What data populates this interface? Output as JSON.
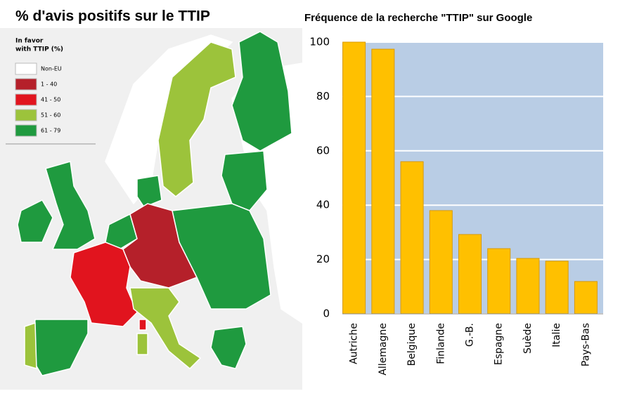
{
  "map": {
    "title": "% d'avis positifs sur le TTIP",
    "legend_title": [
      "In favor",
      "with TTIP (%)"
    ],
    "legend": [
      {
        "label": "Non-EU",
        "color": "#ffffff"
      },
      {
        "label": "1 - 40",
        "color": "#b5202a"
      },
      {
        "label": "41 - 50",
        "color": "#e1141e"
      },
      {
        "label": "51 - 60",
        "color": "#9cc33b"
      },
      {
        "label": "61 - 79",
        "color": "#1f9a3f"
      }
    ]
  },
  "chart_data": {
    "type": "bar",
    "title": "Fréquence de la recherche \"TTIP\" sur Google",
    "categories": [
      "Autriche",
      "Allemagne",
      "Belgique",
      "Finlande",
      "G.-B.",
      "Espagne",
      "Suède",
      "Italie",
      "Pays-Bas"
    ],
    "values": [
      100,
      97.4,
      56,
      38,
      29.2,
      24,
      20.4,
      19.4,
      11.9
    ],
    "color": "#ffc000",
    "edge": "#d99a00",
    "background": "#b9cde5",
    "ylim": [
      0,
      100
    ],
    "yticks": [
      0,
      20,
      40,
      60,
      80,
      100
    ],
    "grid": true
  }
}
